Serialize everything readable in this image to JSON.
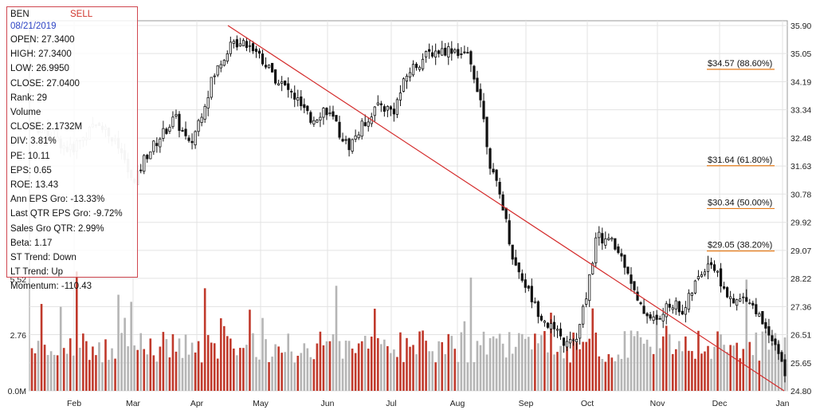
{
  "info": {
    "ticker": "BEN",
    "signal": "SELL",
    "date": "08/21/2019",
    "lines": [
      "OPEN: 27.3400",
      "HIGH: 27.3400",
      "LOW: 26.9950",
      "CLOSE: 27.0400",
      "Rank: 29",
      "Volume",
      "CLOSE: 2.1732M",
      "DIV: 3.81%",
      "PE: 10.11",
      "EPS: 0.65",
      "ROE: 13.43",
      "Ann EPS Gro: -13.33%",
      "Last QTR EPS Gro: -9.72%",
      "Sales Gro QTR: 2.99%",
      "Beta: 1.17",
      "ST Trend: Down",
      "LT Trend: Up",
      "Momentum: -110.43"
    ]
  },
  "colors": {
    "up_volume": "#c0392b",
    "down_volume": "#b5b5b5",
    "candle": "#111111",
    "trendline": "#d42b2b",
    "fib_line": "#e57b1a",
    "border": "#d0464f",
    "signal": "#d0342c",
    "date": "#2d44c4"
  },
  "chart_data": {
    "type": "candlestick",
    "price_axis_labels": [
      "35.90",
      "35.05",
      "34.19",
      "33.34",
      "32.48",
      "31.63",
      "30.78",
      "29.92",
      "29.07",
      "28.22",
      "27.36",
      "26.51",
      "25.65",
      "24.80"
    ],
    "price_ylim": [
      24.8,
      35.9
    ],
    "volume_axis_labels": [
      "5.52",
      "2.76",
      "0.0M"
    ],
    "volume_ylim": [
      0,
      5.52
    ],
    "month_labels": [
      "Feb",
      "Mar",
      "Apr",
      "May",
      "Jun",
      "Jul",
      "Aug",
      "Sep",
      "Oct",
      "Nov",
      "Dec",
      "Jan"
    ],
    "fib_levels": [
      {
        "price": 34.57,
        "label": "$34.57 (88.60%)"
      },
      {
        "price": 31.64,
        "label": "$31.64 (61.80%)"
      },
      {
        "price": 30.34,
        "label": "$30.34 (50.00%)"
      },
      {
        "price": 29.05,
        "label": "$29.05 (38.20%)"
      }
    ],
    "trendline": {
      "start": {
        "month": "Apr",
        "price": 35.9
      },
      "end": {
        "month": "Jan",
        "price": 24.8
      }
    },
    "price_path": [
      {
        "t": 0.0,
        "p": 32.9
      },
      {
        "t": 0.03,
        "p": 32.5
      },
      {
        "t": 0.05,
        "p": 32.1
      },
      {
        "t": 0.09,
        "p": 33.0
      },
      {
        "t": 0.12,
        "p": 32.0
      },
      {
        "t": 0.135,
        "p": 31.0
      },
      {
        "t": 0.15,
        "p": 31.9
      },
      {
        "t": 0.19,
        "p": 33.1
      },
      {
        "t": 0.21,
        "p": 32.2
      },
      {
        "t": 0.24,
        "p": 34.3
      },
      {
        "t": 0.26,
        "p": 35.2
      },
      {
        "t": 0.28,
        "p": 35.5
      },
      {
        "t": 0.3,
        "p": 35.1
      },
      {
        "t": 0.32,
        "p": 34.4
      },
      {
        "t": 0.35,
        "p": 33.7
      },
      {
        "t": 0.37,
        "p": 33.0
      },
      {
        "t": 0.39,
        "p": 33.4
      },
      {
        "t": 0.42,
        "p": 32.2
      },
      {
        "t": 0.44,
        "p": 32.9
      },
      {
        "t": 0.46,
        "p": 33.5
      },
      {
        "t": 0.48,
        "p": 33.3
      },
      {
        "t": 0.5,
        "p": 34.5
      },
      {
        "t": 0.53,
        "p": 35.1
      },
      {
        "t": 0.56,
        "p": 35.2
      },
      {
        "t": 0.58,
        "p": 34.9
      },
      {
        "t": 0.595,
        "p": 33.8
      },
      {
        "t": 0.61,
        "p": 31.5
      },
      {
        "t": 0.625,
        "p": 30.5
      },
      {
        "t": 0.64,
        "p": 28.7
      },
      {
        "t": 0.65,
        "p": 28.3
      },
      {
        "t": 0.67,
        "p": 27.3
      },
      {
        "t": 0.69,
        "p": 26.7
      },
      {
        "t": 0.71,
        "p": 26.2
      },
      {
        "t": 0.725,
        "p": 26.4
      },
      {
        "t": 0.74,
        "p": 28.2
      },
      {
        "t": 0.75,
        "p": 29.5
      },
      {
        "t": 0.77,
        "p": 29.3
      },
      {
        "t": 0.79,
        "p": 28.6
      },
      {
        "t": 0.805,
        "p": 27.4
      },
      {
        "t": 0.83,
        "p": 26.9
      },
      {
        "t": 0.85,
        "p": 27.5
      },
      {
        "t": 0.865,
        "p": 27.2
      },
      {
        "t": 0.88,
        "p": 28.0
      },
      {
        "t": 0.9,
        "p": 28.8
      },
      {
        "t": 0.915,
        "p": 28.1
      },
      {
        "t": 0.93,
        "p": 27.4
      },
      {
        "t": 0.95,
        "p": 27.7
      },
      {
        "t": 0.97,
        "p": 26.9
      },
      {
        "t": 0.985,
        "p": 26.4
      },
      {
        "t": 1.0,
        "p": 25.3
      }
    ]
  }
}
